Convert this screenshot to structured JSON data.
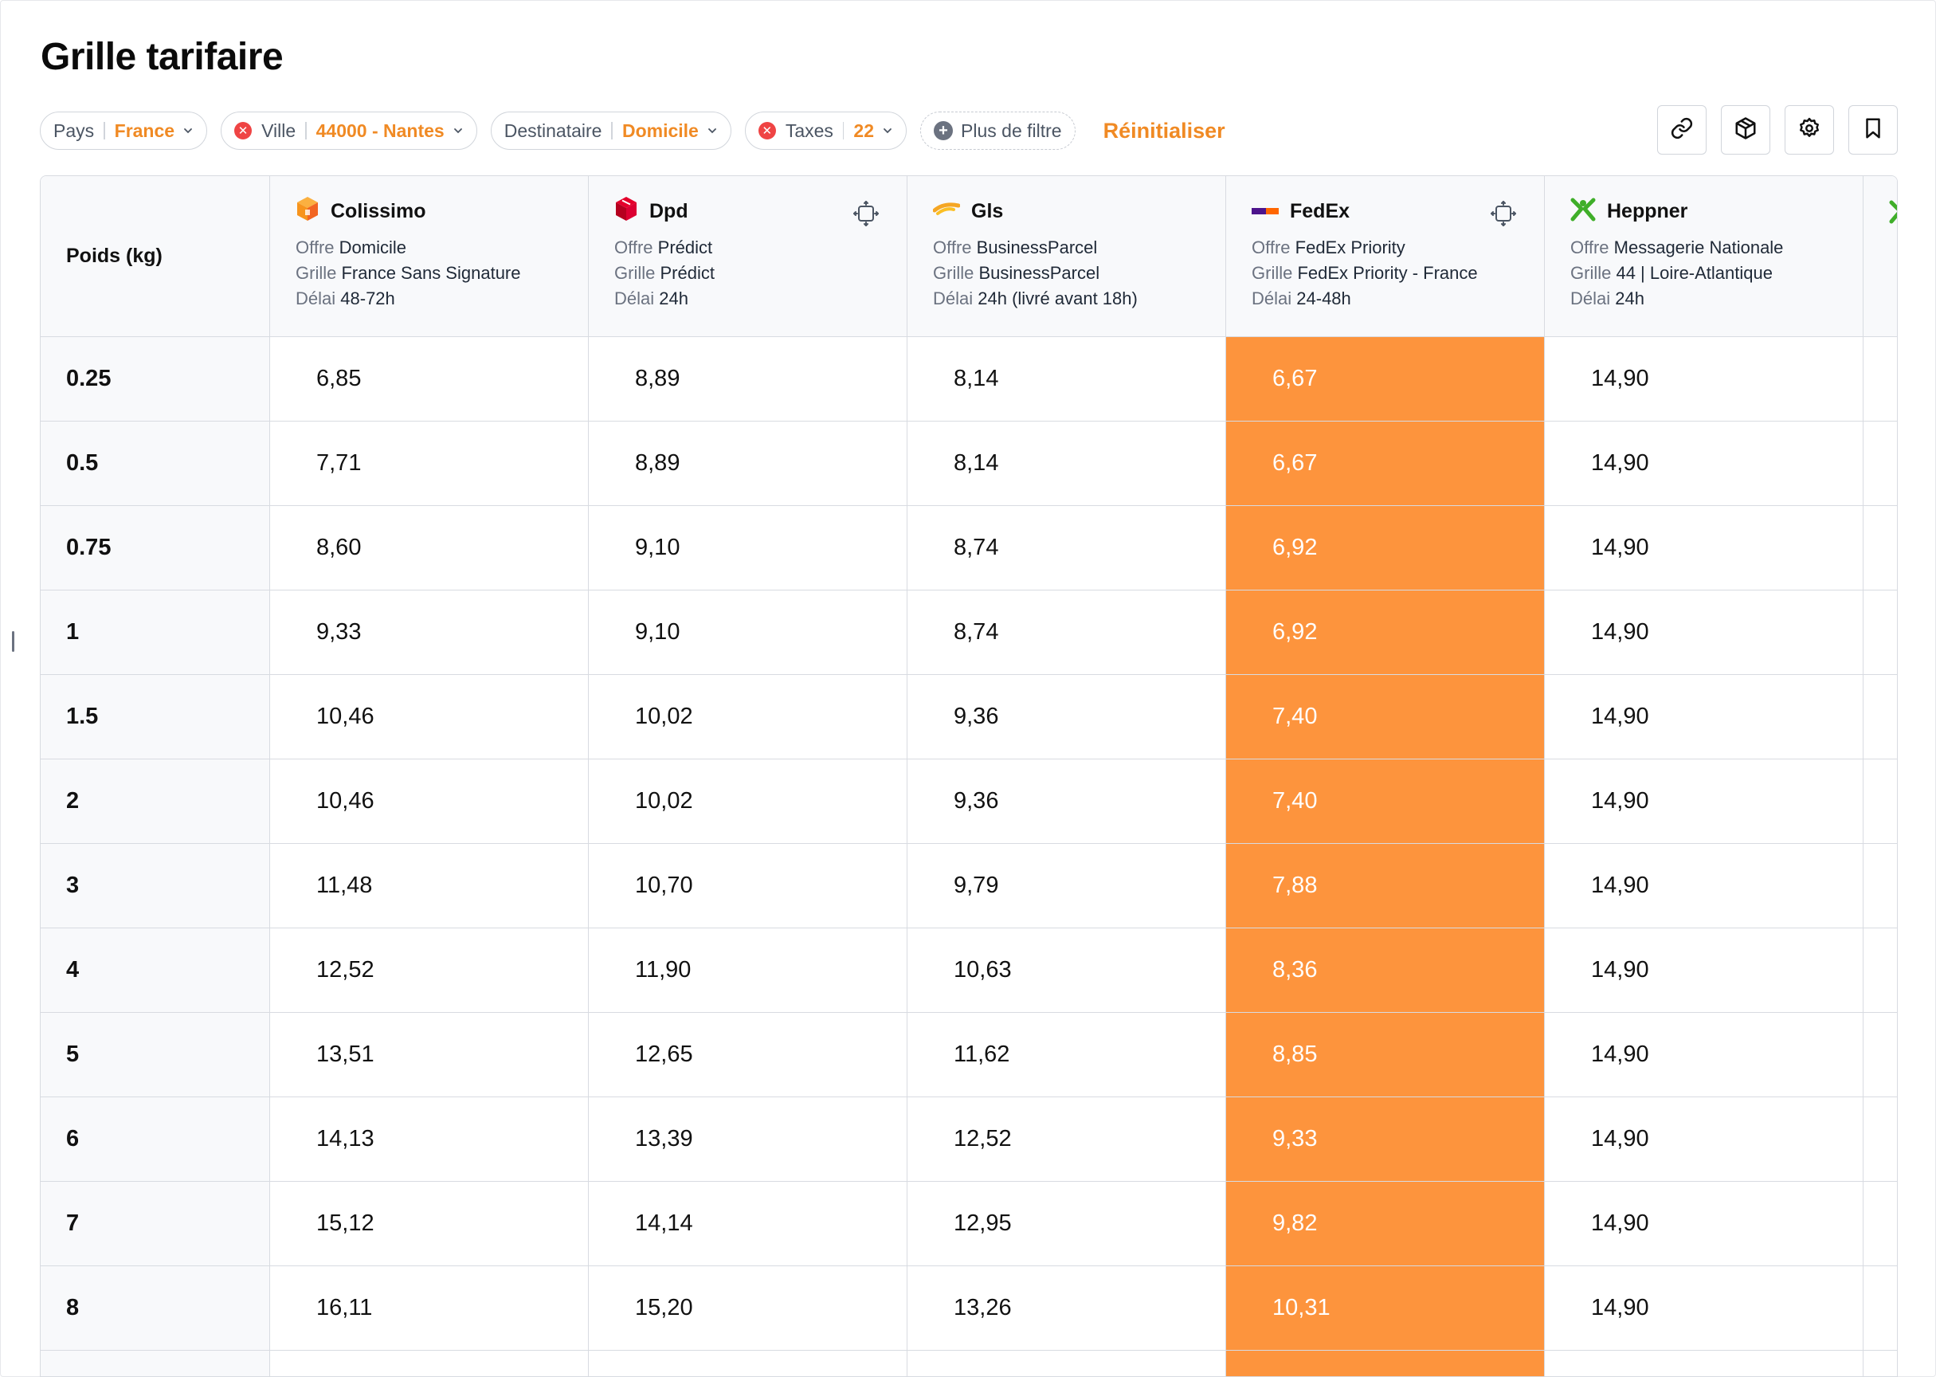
{
  "title": "Grille tarifaire",
  "filters": [
    {
      "key": "Pays",
      "value": "France",
      "removable": false
    },
    {
      "key": "Ville",
      "value": "44000 - Nantes",
      "removable": true
    },
    {
      "key": "Destinataire",
      "value": "Domicile",
      "removable": false
    },
    {
      "key": "Taxes",
      "value": "22",
      "removable": true
    }
  ],
  "more_filters_label": "Plus de filtre",
  "reset_label": "Réinitialiser",
  "toolbar_icons": [
    "link-icon",
    "package-icon",
    "gear-icon",
    "bookmark-icon"
  ],
  "table": {
    "weight_header": "Poids (kg)",
    "labels": {
      "offer": "Offre",
      "grid": "Grille",
      "delay": "Délai"
    },
    "carriers": [
      {
        "name": "Colissimo",
        "offer": "Domicile",
        "grid": "France Sans Signature",
        "delay": "48-72h",
        "icon": "colissimo-logo-icon",
        "focus": false
      },
      {
        "name": "Dpd",
        "offer": "Prédict",
        "grid": "Prédict",
        "delay": "24h",
        "icon": "dpd-logo-icon",
        "focus": true
      },
      {
        "name": "Gls",
        "offer": "BusinessParcel",
        "grid": "BusinessParcel",
        "delay": "24h (livré avant 18h)",
        "icon": "gls-logo-icon",
        "focus": false
      },
      {
        "name": "FedEx",
        "offer": "FedEx Priority",
        "grid": "FedEx Priority - France",
        "delay": "24-48h",
        "icon": "fedex-logo-icon",
        "focus": true,
        "highlight_color": "#fd943d"
      },
      {
        "name": "Heppner",
        "offer": "Messagerie Nationale",
        "grid": "44 | Loire-Atlantique",
        "delay": "24h",
        "icon": "heppner-logo-icon",
        "focus": false
      }
    ],
    "rows": [
      {
        "weight": "0.25",
        "prices": [
          "6,85",
          "8,89",
          "8,14",
          "6,67",
          "14,90"
        ]
      },
      {
        "weight": "0.5",
        "prices": [
          "7,71",
          "8,89",
          "8,14",
          "6,67",
          "14,90"
        ]
      },
      {
        "weight": "0.75",
        "prices": [
          "8,60",
          "9,10",
          "8,74",
          "6,92",
          "14,90"
        ]
      },
      {
        "weight": "1",
        "prices": [
          "9,33",
          "9,10",
          "8,74",
          "6,92",
          "14,90"
        ]
      },
      {
        "weight": "1.5",
        "prices": [
          "10,46",
          "10,02",
          "9,36",
          "7,40",
          "14,90"
        ]
      },
      {
        "weight": "2",
        "prices": [
          "10,46",
          "10,02",
          "9,36",
          "7,40",
          "14,90"
        ]
      },
      {
        "weight": "3",
        "prices": [
          "11,48",
          "10,70",
          "9,79",
          "7,88",
          "14,90"
        ]
      },
      {
        "weight": "4",
        "prices": [
          "12,52",
          "11,90",
          "10,63",
          "8,36",
          "14,90"
        ]
      },
      {
        "weight": "5",
        "prices": [
          "13,51",
          "12,65",
          "11,62",
          "8,85",
          "14,90"
        ]
      },
      {
        "weight": "6",
        "prices": [
          "14,13",
          "13,39",
          "12,52",
          "9,33",
          "14,90"
        ]
      },
      {
        "weight": "7",
        "prices": [
          "15,12",
          "14,14",
          "12,95",
          "9,82",
          "14,90"
        ]
      },
      {
        "weight": "8",
        "prices": [
          "16,11",
          "15,20",
          "13,26",
          "10,31",
          "14,90"
        ]
      }
    ]
  }
}
